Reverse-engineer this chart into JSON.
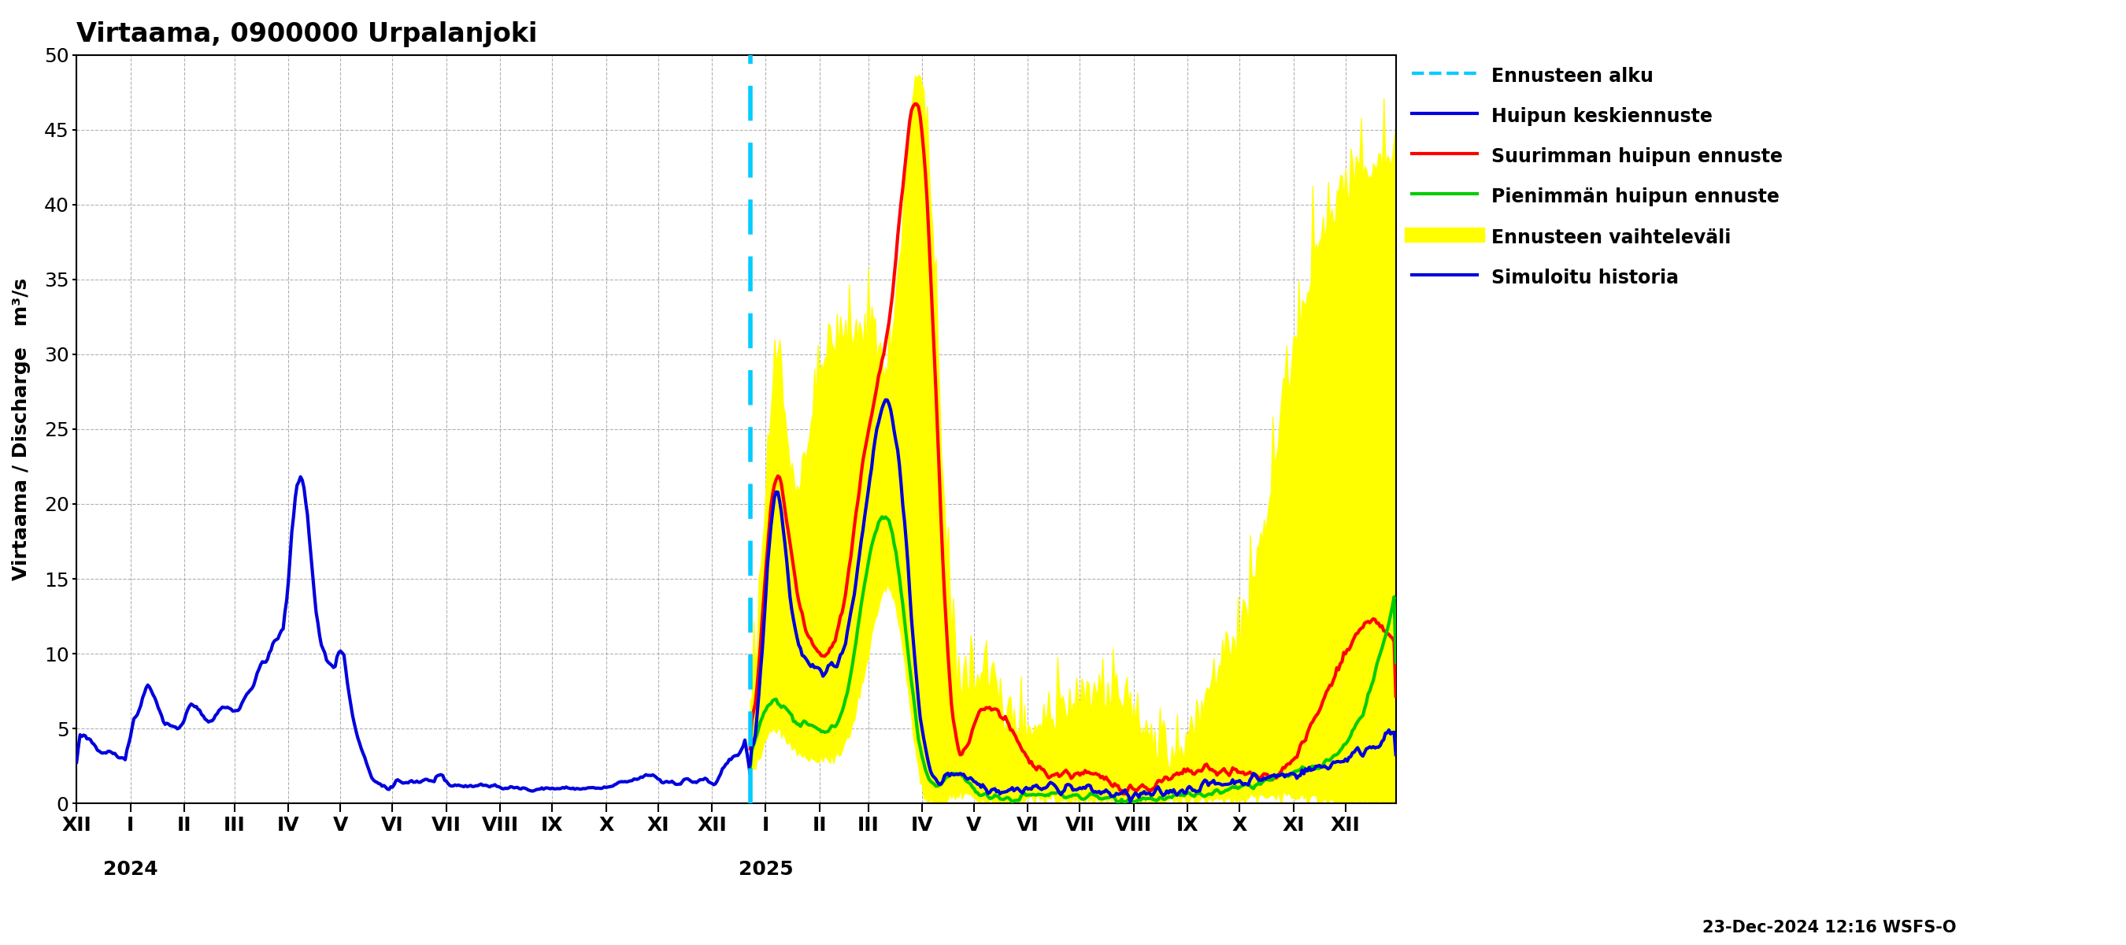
{
  "title": "Virtaama, 0900000 Urpalanjoki",
  "ylabel_left": "Virtaama / Discharge   m³/s",
  "ylim": [
    0,
    50
  ],
  "yticks": [
    0,
    5,
    10,
    15,
    20,
    25,
    30,
    35,
    40,
    45,
    50
  ],
  "background_color": "#ffffff",
  "grid_color": "#aaaaaa",
  "date_label": "23-Dec-2024 12:16 WSFS-O",
  "colors": {
    "history": "#0000dd",
    "mean_forecast": "#0000dd",
    "max_forecast": "#ff0000",
    "min_forecast": "#00cc00",
    "band": "#ffff00",
    "forecast_line": "#00ccff"
  },
  "month_labels": [
    "XII",
    "I",
    "II",
    "III",
    "IV",
    "V",
    "VI",
    "VII",
    "VIII",
    "IX",
    "X",
    "XI",
    "XII",
    "I",
    "II",
    "III",
    "IV",
    "V",
    "VI",
    "VII",
    "VIII",
    "IX",
    "X",
    "XI",
    "XII"
  ],
  "legend_labels": [
    "Ennusteen alku",
    "Huipun keskiennuste",
    "Suurimman huipun ennuste",
    "Pienimmän huipun ennuste",
    "Ennusteen vaihteleväli",
    "Simuloitu historia"
  ]
}
